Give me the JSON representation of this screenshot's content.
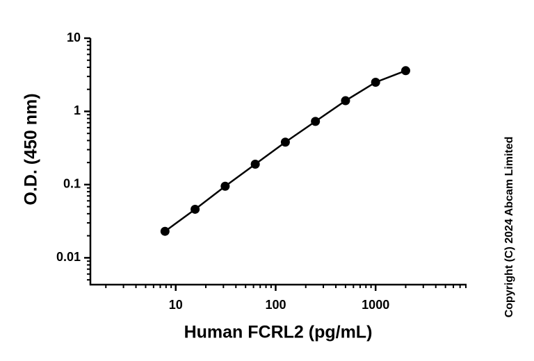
{
  "chart_data": {
    "type": "scatter",
    "log_x": true,
    "log_y": true,
    "x_label": "Human FCRL2 (pg/mL)",
    "y_label": "O.D. (450 nm)",
    "annotation": "Copyright (C) 2024 Abcam Limited",
    "x": [
      7.8125,
      15.625,
      31.25,
      62.5,
      125,
      250,
      500,
      1000,
      2000
    ],
    "series": [
      {
        "color": "#000000",
        "values": [
          0.023,
          0.046,
          0.095,
          0.19,
          0.38,
          0.73,
          1.4,
          2.5,
          3.6
        ]
      }
    ],
    "xlim": [
      1.4,
      8000
    ],
    "ylim": [
      0.0043,
      10
    ],
    "xticks": [
      10,
      100,
      1000
    ],
    "yticks": [
      0.01,
      0.1,
      1,
      10
    ],
    "xminorticks": [
      2,
      3,
      4,
      5,
      6,
      7,
      8,
      9,
      20,
      30,
      40,
      50,
      60,
      70,
      80,
      90,
      200,
      300,
      400,
      500,
      600,
      700,
      800,
      900,
      2000,
      3000,
      4000,
      5000,
      6000,
      7000,
      8000
    ],
    "yminorticks": [
      0.005,
      0.006,
      0.007,
      0.008,
      0.009,
      0.02,
      0.03,
      0.04,
      0.05,
      0.06,
      0.07,
      0.08,
      0.09,
      0.2,
      0.3,
      0.4,
      0.5,
      0.6,
      0.7,
      0.8,
      0.9,
      2,
      3,
      4,
      5,
      6,
      7,
      8,
      9
    ],
    "grid": false
  }
}
